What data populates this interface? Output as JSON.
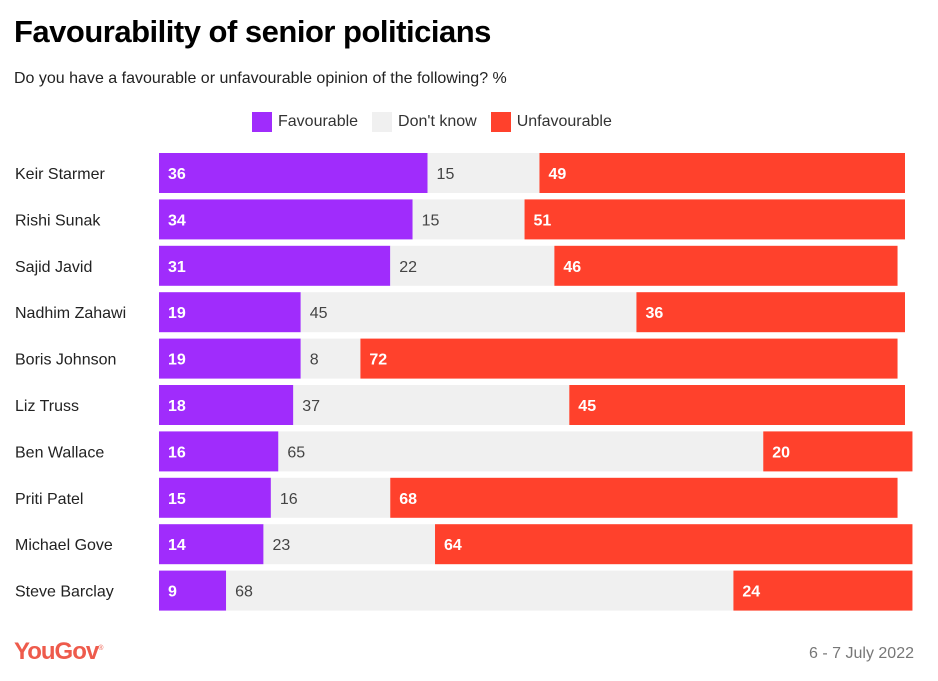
{
  "chart_data": {
    "type": "bar",
    "stacked": true,
    "orientation": "horizontal",
    "title": "Favourability of senior politicians",
    "subtitle": "Do you have a favourable or unfavourable opinion of the following? %",
    "xlabel": "",
    "ylabel": "",
    "xlim": [
      0,
      100
    ],
    "grid": false,
    "legend_position": "top",
    "categories": [
      "Keir Starmer",
      "Rishi Sunak",
      "Sajid Javid",
      "Nadhim Zahawi",
      "Boris Johnson",
      "Liz Truss",
      "Ben Wallace",
      "Priti Patel",
      "Michael Gove",
      "Steve Barclay"
    ],
    "series": [
      {
        "name": "Favourable",
        "color": "#a02cfc",
        "values": [
          36,
          34,
          31,
          19,
          19,
          18,
          16,
          15,
          14,
          9
        ]
      },
      {
        "name": "Don't know",
        "color": "#f0f0f0",
        "values": [
          15,
          15,
          22,
          45,
          8,
          37,
          65,
          16,
          23,
          68
        ]
      },
      {
        "name": "Unfavourable",
        "color": "#ff412c",
        "values": [
          49,
          51,
          46,
          36,
          72,
          45,
          20,
          68,
          64,
          24
        ]
      }
    ]
  },
  "footer": {
    "brand": "YouGov",
    "brand_mark": "®",
    "date": "6 - 7 July 2022"
  }
}
